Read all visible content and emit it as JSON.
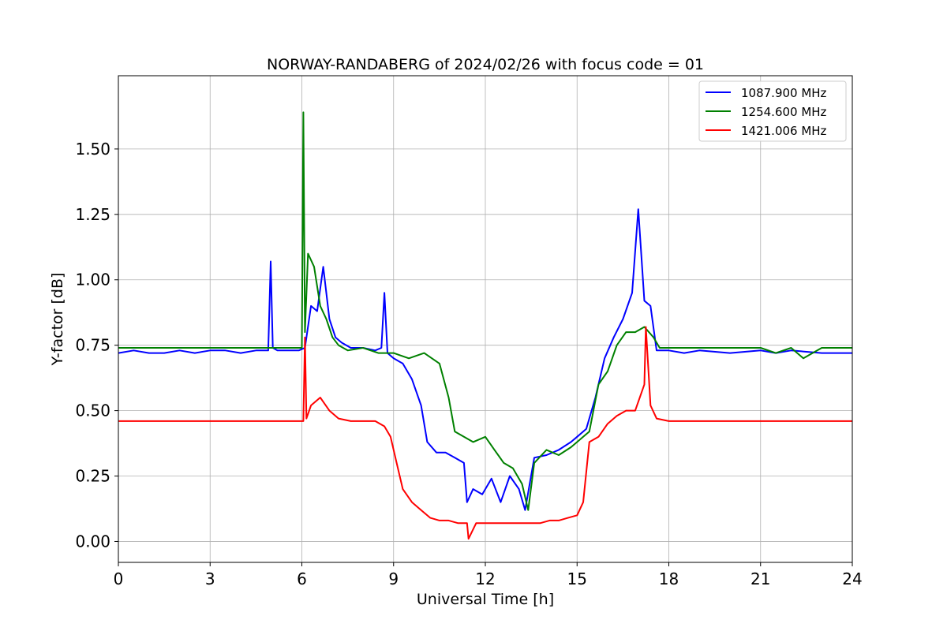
{
  "chart_data": {
    "type": "line",
    "title": "NORWAY-RANDABERG of 2024/02/26 with focus code = 01",
    "xlabel": "Universal Time [h]",
    "ylabel": "Y-factor [dB]",
    "xlim": [
      0,
      24
    ],
    "ylim": [
      -0.08,
      1.78
    ],
    "xticks": [
      0,
      3,
      6,
      9,
      12,
      15,
      18,
      21,
      24
    ],
    "xtick_labels": [
      "0",
      "3",
      "6",
      "9",
      "12",
      "15",
      "18",
      "21",
      "24"
    ],
    "yticks": [
      0.0,
      0.25,
      0.5,
      0.75,
      1.0,
      1.25,
      1.5
    ],
    "ytick_labels": [
      "0.00",
      "0.25",
      "0.50",
      "0.75",
      "1.00",
      "1.25",
      "1.50"
    ],
    "grid": true,
    "legend_position": "top-right",
    "series": [
      {
        "name": "1087.900 MHz",
        "color": "#0000ff",
        "x": [
          0,
          0.5,
          1,
          1.5,
          2,
          2.5,
          3,
          3.5,
          4,
          4.5,
          4.9,
          4.98,
          5.05,
          5.2,
          5.6,
          5.9,
          6.1,
          6.3,
          6.5,
          6.7,
          6.9,
          7.1,
          7.3,
          7.6,
          8.0,
          8.4,
          8.6,
          8.7,
          8.8,
          9.0,
          9.3,
          9.6,
          9.9,
          10.1,
          10.4,
          10.7,
          11.0,
          11.3,
          11.4,
          11.6,
          11.9,
          12.2,
          12.5,
          12.8,
          13.1,
          13.3,
          13.6,
          14.0,
          14.4,
          14.8,
          15.0,
          15.3,
          15.6,
          15.9,
          16.2,
          16.5,
          16.8,
          17.0,
          17.2,
          17.4,
          17.6,
          18.0,
          18.5,
          19,
          20,
          21,
          21.5,
          22,
          23,
          24
        ],
        "y": [
          0.72,
          0.73,
          0.72,
          0.72,
          0.73,
          0.72,
          0.73,
          0.73,
          0.72,
          0.73,
          0.73,
          1.07,
          0.74,
          0.73,
          0.73,
          0.73,
          0.74,
          0.9,
          0.88,
          1.05,
          0.85,
          0.78,
          0.76,
          0.74,
          0.74,
          0.73,
          0.74,
          0.95,
          0.72,
          0.7,
          0.68,
          0.62,
          0.52,
          0.38,
          0.34,
          0.34,
          0.32,
          0.3,
          0.15,
          0.2,
          0.18,
          0.24,
          0.15,
          0.25,
          0.2,
          0.12,
          0.32,
          0.33,
          0.35,
          0.38,
          0.4,
          0.43,
          0.55,
          0.7,
          0.78,
          0.85,
          0.95,
          1.27,
          0.92,
          0.9,
          0.73,
          0.73,
          0.72,
          0.73,
          0.72,
          0.73,
          0.72,
          0.73,
          0.72,
          0.72
        ]
      },
      {
        "name": "1254.600 MHz",
        "color": "#008000",
        "x": [
          0,
          0.5,
          1,
          1.5,
          2,
          2.5,
          3,
          3.5,
          4,
          4.5,
          5,
          5.5,
          5.9,
          6.0,
          6.05,
          6.1,
          6.2,
          6.4,
          6.6,
          6.8,
          7.0,
          7.2,
          7.5,
          8.0,
          8.5,
          9.0,
          9.5,
          10.0,
          10.5,
          10.8,
          11.0,
          11.3,
          11.6,
          12.0,
          12.3,
          12.6,
          12.9,
          13.2,
          13.4,
          13.6,
          14.0,
          14.4,
          14.8,
          15.0,
          15.2,
          15.4,
          15.7,
          16.0,
          16.3,
          16.6,
          16.9,
          17.2,
          17.5,
          17.7,
          18.0,
          18.5,
          19,
          20,
          21,
          21.5,
          22,
          22.4,
          23,
          24
        ],
        "y": [
          0.74,
          0.74,
          0.74,
          0.74,
          0.74,
          0.74,
          0.74,
          0.74,
          0.74,
          0.74,
          0.74,
          0.74,
          0.74,
          0.74,
          1.64,
          0.8,
          1.1,
          1.05,
          0.9,
          0.85,
          0.78,
          0.75,
          0.73,
          0.74,
          0.72,
          0.72,
          0.7,
          0.72,
          0.68,
          0.55,
          0.42,
          0.4,
          0.38,
          0.4,
          0.35,
          0.3,
          0.28,
          0.22,
          0.12,
          0.3,
          0.35,
          0.33,
          0.36,
          0.38,
          0.4,
          0.42,
          0.6,
          0.65,
          0.75,
          0.8,
          0.8,
          0.82,
          0.78,
          0.74,
          0.74,
          0.74,
          0.74,
          0.74,
          0.74,
          0.72,
          0.74,
          0.7,
          0.74,
          0.74
        ]
      },
      {
        "name": "1421.006 MHz",
        "color": "#ff0000",
        "x": [
          0,
          0.5,
          1,
          1.5,
          2,
          2.5,
          3,
          3.5,
          4,
          4.5,
          5,
          5.5,
          5.9,
          6.05,
          6.1,
          6.15,
          6.3,
          6.6,
          6.9,
          7.2,
          7.6,
          8.0,
          8.4,
          8.7,
          8.9,
          9.1,
          9.3,
          9.6,
          9.9,
          10.2,
          10.5,
          10.8,
          11.1,
          11.4,
          11.45,
          11.7,
          12.0,
          12.4,
          12.8,
          13.2,
          13.5,
          13.8,
          14.1,
          14.4,
          14.7,
          15.0,
          15.2,
          15.4,
          15.7,
          16.0,
          16.3,
          16.6,
          16.9,
          17.2,
          17.25,
          17.4,
          17.6,
          18.0,
          18.5,
          19,
          20,
          21,
          21.5,
          22,
          23,
          24
        ],
        "y": [
          0.46,
          0.46,
          0.46,
          0.46,
          0.46,
          0.46,
          0.46,
          0.46,
          0.46,
          0.46,
          0.46,
          0.46,
          0.46,
          0.46,
          0.78,
          0.47,
          0.52,
          0.55,
          0.5,
          0.47,
          0.46,
          0.46,
          0.46,
          0.44,
          0.4,
          0.3,
          0.2,
          0.15,
          0.12,
          0.09,
          0.08,
          0.08,
          0.07,
          0.07,
          0.01,
          0.07,
          0.07,
          0.07,
          0.07,
          0.07,
          0.07,
          0.07,
          0.08,
          0.08,
          0.09,
          0.1,
          0.15,
          0.38,
          0.4,
          0.45,
          0.48,
          0.5,
          0.5,
          0.6,
          0.82,
          0.52,
          0.47,
          0.46,
          0.46,
          0.46,
          0.46,
          0.46,
          0.46,
          0.46,
          0.46,
          0.46
        ]
      }
    ]
  }
}
